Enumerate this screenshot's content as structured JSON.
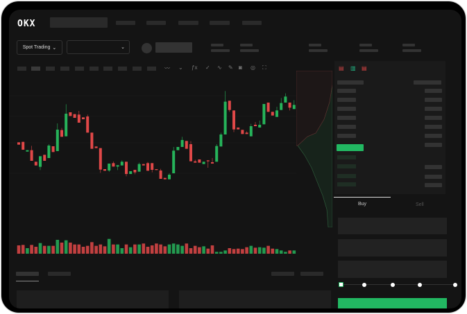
{
  "header": {
    "logo": "OKX"
  },
  "toolbar": {
    "market_select": "Spot Trading",
    "pair_select": "",
    "chevron": "chevron-down-icon"
  },
  "chart_tools": [
    "line-icon",
    "candles-icon",
    "fx-icon",
    "check-icon",
    "trend-icon",
    "pencil-icon",
    "camera-icon",
    "target-icon",
    "fullscreen-icon"
  ],
  "orderbook": {
    "view_icons": [
      "both-sides-icon",
      "bids-icon",
      "asks-icon"
    ]
  },
  "trade": {
    "tabs": [
      {
        "label": "Buy",
        "active": true
      },
      {
        "label": "Sell",
        "active": false
      }
    ],
    "slider_percent": 0,
    "slider_stops": [
      0,
      25,
      50,
      75,
      100
    ]
  },
  "colors": {
    "up": "#26b35a",
    "down": "#e04848",
    "accent": "#22b862",
    "bg": "#141414"
  },
  "chart_data": {
    "type": "candlestick",
    "candles": [
      [
        250,
        250,
        240,
        240
      ],
      [
        252,
        252,
        218,
        218
      ],
      [
        210,
        216,
        210,
        216
      ],
      [
        216,
        235,
        170,
        170
      ],
      [
        166,
        166,
        150,
        150
      ],
      [
        144,
        190,
        130,
        190
      ],
      [
        196,
        196,
        170,
        170
      ],
      [
        182,
        242,
        182,
        236
      ],
      [
        233,
        233,
        208,
        208
      ],
      [
        212,
        332,
        212,
        305
      ],
      [
        303,
        312,
        274,
        274
      ],
      [
        276,
        415,
        276,
        374
      ],
      [
        380,
        380,
        364,
        364
      ],
      [
        372,
        372,
        356,
        356
      ],
      [
        370,
        386,
        335,
        335
      ],
      [
        358,
        358,
        350,
        350
      ],
      [
        362,
        370,
        292,
        292
      ],
      [
        292,
        292,
        222,
        222
      ],
      [
        232,
        232,
        225,
        225
      ],
      [
        225,
        225,
        118,
        132
      ],
      [
        134,
        134,
        127,
        127
      ],
      [
        128,
        158,
        122,
        158
      ],
      [
        160,
        167,
        145,
        145
      ],
      [
        145,
        151,
        130,
        151
      ],
      [
        150,
        172,
        150,
        166
      ],
      [
        166,
        166,
        103,
        113
      ],
      [
        113,
        125,
        113,
        125
      ],
      [
        131,
        131,
        112,
        120
      ],
      [
        123,
        162,
        123,
        156
      ],
      [
        156,
        156,
        150,
        150
      ],
      [
        160,
        165,
        127,
        127
      ],
      [
        160,
        160,
        120,
        131
      ],
      [
        134,
        134,
        130,
        130
      ],
      [
        128,
        135,
        92,
        92
      ],
      [
        96,
        96,
        90,
        90
      ],
      [
        90,
        116,
        90,
        110
      ],
      [
        116,
        230,
        116,
        214
      ],
      [
        216,
        230,
        216,
        230
      ],
      [
        230,
        274,
        230,
        260
      ],
      [
        256,
        256,
        222,
        222
      ],
      [
        242,
        255,
        168,
        168
      ],
      [
        168,
        175,
        162,
        162
      ],
      [
        176,
        176,
        162,
        162
      ],
      [
        156,
        166,
        156,
        166
      ],
      [
        172,
        172,
        140,
        168
      ],
      [
        164,
        182,
        158,
        158
      ],
      [
        166,
        242,
        166,
        234
      ],
      [
        232,
        292,
        232,
        284
      ],
      [
        284,
        472,
        284,
        426
      ],
      [
        430,
        430,
        382,
        390
      ],
      [
        388,
        388,
        294,
        306
      ],
      [
        314,
        314,
        306,
        306
      ],
      [
        304,
        304,
        286,
        286
      ],
      [
        292,
        298,
        286,
        286
      ],
      [
        276,
        330,
        276,
        320
      ],
      [
        326,
        338,
        320,
        320
      ],
      [
        314,
        344,
        314,
        326
      ],
      [
        328,
        416,
        328,
        416
      ],
      [
        422,
        422,
        382,
        382
      ],
      [
        382,
        382,
        366,
        366
      ],
      [
        360,
        404,
        360,
        388
      ],
      [
        390,
        442,
        390,
        420
      ],
      [
        422,
        462,
        422,
        448
      ],
      [
        422,
        422,
        388,
        400
      ],
      [
        394,
        432,
        394,
        412
      ]
    ],
    "volume": [
      36,
      38,
      24,
      38,
      30,
      46,
      34,
      34,
      34,
      60,
      48,
      58,
      48,
      40,
      40,
      30,
      34,
      50,
      34,
      40,
      32,
      64,
      40,
      40,
      24,
      40,
      28,
      40,
      40,
      44,
      30,
      36,
      44,
      40,
      32,
      40,
      44,
      40,
      34,
      44,
      24,
      34,
      28,
      32,
      22,
      36,
      8,
      8,
      14,
      24,
      20,
      22,
      20,
      28,
      34,
      26,
      28,
      26,
      34,
      22,
      20,
      14,
      8,
      14,
      14
    ]
  }
}
